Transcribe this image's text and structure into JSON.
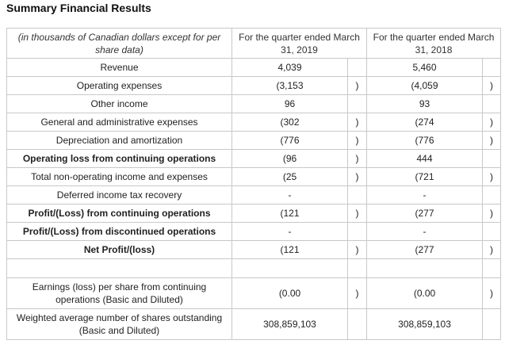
{
  "title": "Summary Financial Results",
  "table": {
    "header": [
      "(in thousands of Canadian dollars except for per share data)",
      "For the quarter ended March 31, 2019",
      "For the quarter ended March 31, 2018"
    ],
    "rows": [
      {
        "label": "Revenue",
        "cells": [
          "4,039",
          null,
          "5,460",
          null
        ]
      },
      {
        "label": "Operating expenses",
        "cells": [
          "(3,153",
          ")",
          "(4,059",
          ")"
        ]
      },
      {
        "label": "Other income",
        "cells": [
          "96",
          null,
          "93",
          null
        ]
      },
      {
        "label": "General and administrative expenses",
        "cells": [
          "(302",
          ")",
          "(274",
          ")"
        ]
      },
      {
        "label": "Depreciation and amortization",
        "cells": [
          "(776",
          ")",
          "(776",
          ")"
        ]
      },
      {
        "label": "Operating loss from continuing operations",
        "bold": true,
        "cells": [
          "(96",
          ")",
          "444",
          null
        ]
      },
      {
        "label": "Total non-operating income and expenses",
        "cells": [
          "(25",
          ")",
          "(721",
          ")"
        ]
      },
      {
        "label": "Deferred income tax recovery",
        "cells": [
          "-",
          null,
          "-",
          null
        ]
      },
      {
        "label": "Profit/(Loss) from continuing operations",
        "bold": true,
        "cells": [
          "(121",
          ")",
          "(277",
          ")"
        ]
      },
      {
        "label": "Profit/(Loss) from discontinued operations",
        "bold": true,
        "cells": [
          "-",
          null,
          "-",
          null
        ]
      },
      {
        "label": "Net Profit/(loss)",
        "bold": true,
        "cells": [
          "(121",
          ")",
          "(277",
          ")"
        ]
      },
      {
        "label": null,
        "cells": [
          null,
          null,
          null,
          null
        ]
      },
      {
        "label": "Earnings (loss) per share from continuing operations (Basic and Diluted)",
        "cells": [
          "(0.00",
          ")",
          "(0.00",
          ")"
        ]
      },
      {
        "label": "Weighted average number of shares outstanding (Basic and Diluted)",
        "cells": [
          "308,859,103",
          null,
          "308,859,103",
          null
        ]
      }
    ]
  }
}
